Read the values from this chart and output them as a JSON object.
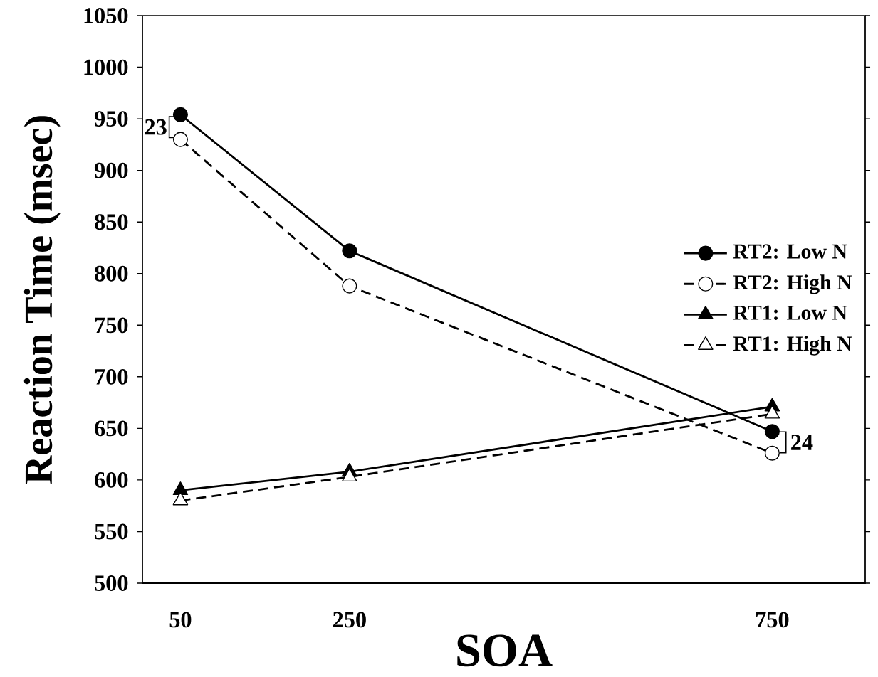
{
  "chart_data": {
    "type": "line",
    "xlabel": "SOA",
    "ylabel": "Reaction Time (msec)",
    "x": [
      50,
      250,
      750
    ],
    "series": [
      {
        "name": "RT2: Low N",
        "color": "#000000",
        "marker": "circle",
        "line_style": "solid",
        "values": [
          954,
          822,
          647
        ]
      },
      {
        "name": "RT2: High N",
        "color": "#000000",
        "marker": "circle",
        "line_style": "dashed",
        "values": [
          930,
          788,
          626
        ]
      },
      {
        "name": "RT1: Low N",
        "color": "#000000",
        "marker": "triangle",
        "line_style": "solid",
        "values": [
          590,
          608,
          671
        ]
      },
      {
        "name": "RT1: High N",
        "color": "#000000",
        "marker": "triangle",
        "line_style": "dashed",
        "values": [
          580,
          603,
          664
        ]
      }
    ],
    "xlim": [
      5,
      860
    ],
    "xticks": [
      50,
      250,
      750
    ],
    "ylim": [
      500,
      1050
    ],
    "yticks": [
      500,
      550,
      600,
      650,
      700,
      750,
      800,
      850,
      900,
      950,
      1000,
      1050
    ],
    "grid": false,
    "legend": "right",
    "annotations": [
      "23",
      "24"
    ]
  }
}
